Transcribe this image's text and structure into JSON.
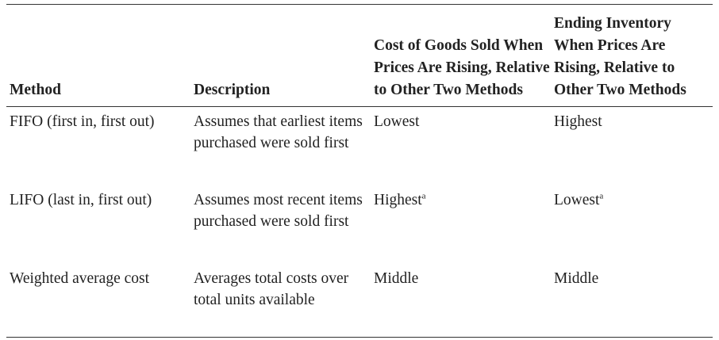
{
  "table": {
    "headers": [
      "Method",
      "Description",
      "Cost of Goods Sold When Prices Are Rising, Relative to Other Two Methods",
      "Ending Inventory When Prices Are Rising, Relative to Other Two Methods"
    ],
    "rows": [
      {
        "method": "FIFO (first in, first out)",
        "description": "Assumes that earliest items purchased were sold first",
        "cogs": "Lowest",
        "cogs_note": "",
        "ending_inventory": "Highest",
        "ending_inventory_note": ""
      },
      {
        "method": "LIFO (last in, first out)",
        "description": "Assumes most recent items purchased were sold first",
        "cogs": "Highest",
        "cogs_note": "a",
        "ending_inventory": "Lowest",
        "ending_inventory_note": "a"
      },
      {
        "method": "Weighted average cost",
        "description": "Averages total costs over total units available",
        "cogs": "Middle",
        "cogs_note": "",
        "ending_inventory": "Middle",
        "ending_inventory_note": ""
      }
    ]
  }
}
